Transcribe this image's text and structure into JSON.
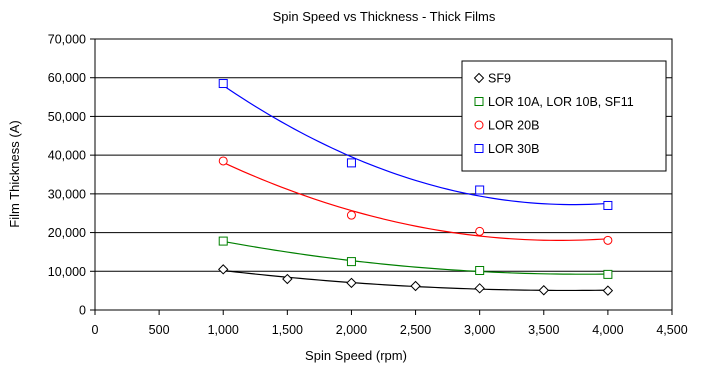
{
  "chart_data": {
    "type": "scatter",
    "title": "Spin Speed vs Thickness - Thick Films",
    "xlabel": "Spin Speed (rpm)",
    "ylabel": "Film Thickness (A)",
    "xlim": [
      0,
      4500
    ],
    "ylim": [
      0,
      70000
    ],
    "x_ticks": [
      0,
      500,
      1000,
      1500,
      2000,
      2500,
      3000,
      3500,
      4000,
      4500
    ],
    "y_ticks": [
      0,
      10000,
      20000,
      30000,
      40000,
      50000,
      60000,
      70000
    ],
    "x_tick_labels": [
      "0",
      "500",
      "1,000",
      "1,500",
      "2,000",
      "2,500",
      "3,000",
      "3,500",
      "4,000",
      "4,500"
    ],
    "y_tick_labels": [
      "0",
      "10,000",
      "20,000",
      "30,000",
      "40,000",
      "50,000",
      "60,000",
      "70,000"
    ],
    "grid": "horizontal",
    "legend_position": "right",
    "trendlines": true,
    "series": [
      {
        "name": "SF9",
        "marker": "diamond",
        "marker_symbol": "◇",
        "color": "#000000",
        "points": [
          [
            1000,
            10500
          ],
          [
            1500,
            8000
          ],
          [
            2000,
            7000
          ],
          [
            2500,
            6200
          ],
          [
            3000,
            5600
          ],
          [
            3500,
            5100
          ],
          [
            4000,
            5000
          ]
        ]
      },
      {
        "name": "LOR 10A, LOR 10B, SF11",
        "marker": "square",
        "marker_symbol": "□",
        "color": "#008000",
        "points": [
          [
            1000,
            17800
          ],
          [
            2000,
            12500
          ],
          [
            3000,
            10200
          ],
          [
            4000,
            9200
          ]
        ]
      },
      {
        "name": "LOR 20B",
        "marker": "circle",
        "marker_symbol": "○",
        "color": "#ff0000",
        "points": [
          [
            1000,
            38500
          ],
          [
            2000,
            24500
          ],
          [
            3000,
            20300
          ],
          [
            4000,
            18000
          ]
        ]
      },
      {
        "name": "LOR 30B",
        "marker": "square",
        "marker_symbol": "□",
        "color": "#0000ff",
        "points": [
          [
            1000,
            58500
          ],
          [
            2000,
            38000
          ],
          [
            3000,
            31000
          ],
          [
            4000,
            27000
          ]
        ]
      }
    ]
  }
}
